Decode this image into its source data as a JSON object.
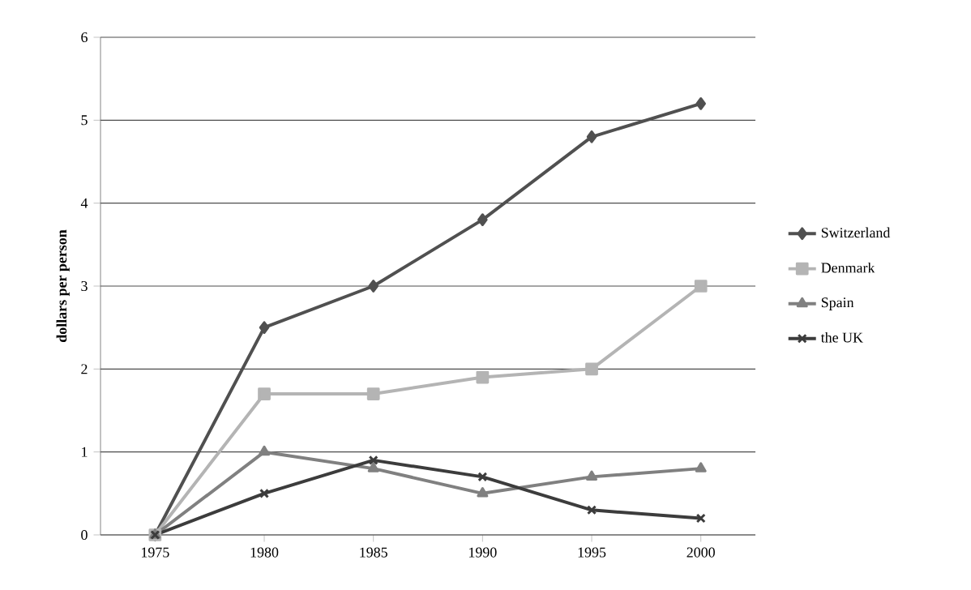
{
  "chart_data": {
    "type": "line",
    "ylabel": "dollars per person",
    "categories": [
      "1975",
      "1980",
      "1985",
      "1990",
      "1995",
      "2000"
    ],
    "series": [
      {
        "name": "Switzerland",
        "color": "#505050",
        "marker": "diamond",
        "values": [
          0,
          2.5,
          3,
          3.8,
          4.8,
          5.2
        ]
      },
      {
        "name": "Denmark",
        "color": "#b4b4b4",
        "marker": "square",
        "values": [
          0,
          1.7,
          1.7,
          1.9,
          2.0,
          3.0
        ]
      },
      {
        "name": "Spain",
        "color": "#808080",
        "marker": "triangle",
        "values": [
          0,
          1.0,
          0.8,
          0.5,
          0.7,
          0.8
        ]
      },
      {
        "name": "the UK",
        "color": "#3c3c3c",
        "marker": "cross",
        "values": [
          0,
          0.5,
          0.9,
          0.7,
          0.3,
          0.2
        ]
      }
    ],
    "ylim": [
      0,
      6
    ],
    "yticks": [
      0,
      1,
      2,
      3,
      4,
      5,
      6
    ],
    "grid": "y",
    "legend": "right",
    "line_style": "solid"
  }
}
